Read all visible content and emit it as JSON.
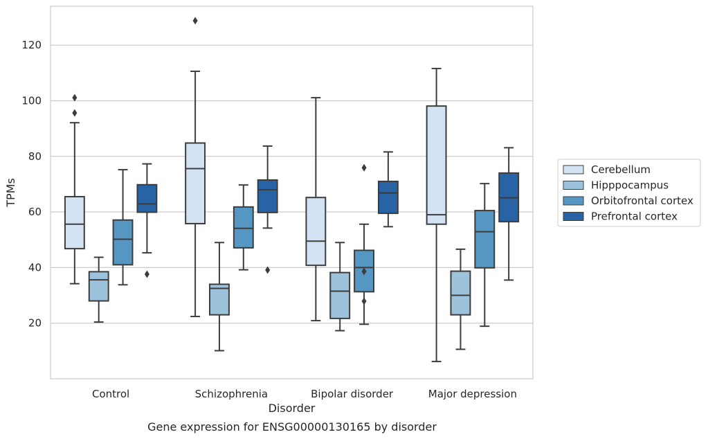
{
  "chart_data": {
    "type": "boxplot",
    "title": "Gene expression for ENSG00000130165 by disorder",
    "xlabel": "Disorder",
    "ylabel": "TPMs",
    "ylim": [
      0,
      134
    ],
    "yticks": [
      20,
      40,
      60,
      80,
      100,
      120
    ],
    "grid": "horizontal",
    "legend_position": "right",
    "categories": [
      "Control",
      "Schizophrenia",
      "Bipolar disorder",
      "Major depression"
    ],
    "series": [
      {
        "name": "Cerebellum",
        "color": "#d4e3f3",
        "boxes": [
          {
            "whislo": 34.2,
            "q1": 46.8,
            "med": 55.6,
            "q3": 65.5,
            "whishi": 92.1,
            "fliers": [
              95.6,
              101.1
            ]
          },
          {
            "whislo": 22.4,
            "q1": 55.8,
            "med": 75.6,
            "q3": 84.8,
            "whishi": 110.6,
            "fliers": [
              128.8
            ]
          },
          {
            "whislo": 20.9,
            "q1": 40.8,
            "med": 49.5,
            "q3": 65.2,
            "whishi": 101.1,
            "fliers": []
          },
          {
            "whislo": 6.2,
            "q1": 55.6,
            "med": 59.0,
            "q3": 98.1,
            "whishi": 111.6,
            "fliers": []
          }
        ]
      },
      {
        "name": "Hipppocampus",
        "color": "#9dc2db",
        "boxes": [
          {
            "whislo": 20.4,
            "q1": 28.0,
            "med": 35.6,
            "q3": 38.5,
            "whishi": 43.7,
            "fliers": []
          },
          {
            "whislo": 10.1,
            "q1": 23.0,
            "med": 32.5,
            "q3": 34.0,
            "whishi": 49.0,
            "fliers": []
          },
          {
            "whislo": 17.3,
            "q1": 21.7,
            "med": 31.5,
            "q3": 38.2,
            "whishi": 49.0,
            "fliers": []
          },
          {
            "whislo": 10.6,
            "q1": 23.0,
            "med": 30.0,
            "q3": 38.7,
            "whishi": 46.6,
            "fliers": []
          }
        ]
      },
      {
        "name": "Orbitofrontal cortex",
        "color": "#5696c3",
        "boxes": [
          {
            "whislo": 33.8,
            "q1": 41.0,
            "med": 50.2,
            "q3": 57.1,
            "whishi": 75.2,
            "fliers": []
          },
          {
            "whislo": 39.2,
            "q1": 47.1,
            "med": 54.1,
            "q3": 61.8,
            "whishi": 69.7,
            "fliers": []
          },
          {
            "whislo": 19.6,
            "q1": 31.3,
            "med": 40.0,
            "q3": 46.2,
            "whishi": 55.6,
            "fliers": [
              27.9,
              38.6,
              75.9
            ]
          },
          {
            "whislo": 18.9,
            "q1": 39.9,
            "med": 52.9,
            "q3": 60.5,
            "whishi": 70.2,
            "fliers": []
          }
        ]
      },
      {
        "name": "Prefrontal cortex",
        "color": "#2763a5",
        "boxes": [
          {
            "whislo": 45.3,
            "q1": 59.9,
            "med": 62.9,
            "q3": 69.8,
            "whishi": 77.3,
            "fliers": [
              37.6
            ]
          },
          {
            "whislo": 54.2,
            "q1": 59.8,
            "med": 68.0,
            "q3": 71.5,
            "whishi": 83.7,
            "fliers": [
              39.1
            ]
          },
          {
            "whislo": 54.7,
            "q1": 59.5,
            "med": 66.8,
            "q3": 71.0,
            "whishi": 81.6,
            "fliers": []
          },
          {
            "whislo": 35.5,
            "q1": 56.5,
            "med": 65.1,
            "q3": 74.0,
            "whishi": 83.1,
            "fliers": []
          }
        ]
      }
    ]
  }
}
